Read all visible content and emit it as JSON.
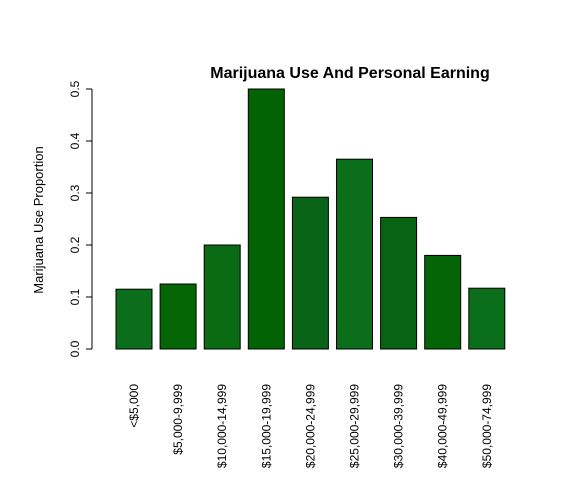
{
  "chart_data": {
    "type": "bar",
    "title": "Marijuana Use And Personal Earning",
    "xlabel": "",
    "ylabel": "Marijuana Use Proportion",
    "ylim": [
      0,
      0.5
    ],
    "yticks": [
      "0.0",
      "0.1",
      "0.2",
      "0.3",
      "0.4",
      "0.5"
    ],
    "categories": [
      "<$5,000",
      "$5,000-9,999",
      "$10,000-14,999",
      "$15,000-19,999",
      "$20,000-24,999",
      "$25,000-29,999",
      "$30,000-39,999",
      "$40,000-49,999",
      "$50,000-74,999"
    ],
    "values": [
      0.115,
      0.125,
      0.2,
      0.5,
      0.292,
      0.365,
      0.253,
      0.18,
      0.117
    ],
    "bar_colors": [
      "#0b6e1b",
      "#046605",
      "#0b6b14",
      "#036203",
      "#0a6418",
      "#0b6e1b",
      "#086412",
      "#056506",
      "#0b6e1b"
    ],
    "bar_border": "#000000",
    "grid": false,
    "legend": "none"
  }
}
